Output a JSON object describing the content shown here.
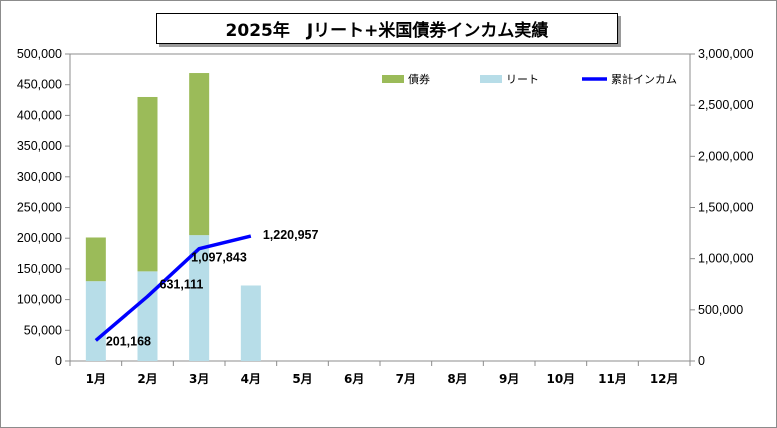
{
  "title": "2025年　Jリート+米国債券インカム実績",
  "colors": {
    "bond": "#9bbb59",
    "reit": "#b7dde8",
    "cumulative": "#0000ff"
  },
  "chart_data": {
    "type": "bar",
    "stacked": true,
    "categories": [
      "1月",
      "2月",
      "3月",
      "4月",
      "5月",
      "6月",
      "7月",
      "8月",
      "9月",
      "10月",
      "11月",
      "12月"
    ],
    "series": [
      {
        "name": "リート",
        "axis": "left",
        "values": [
          130000,
          146000,
          205000,
          123000,
          null,
          null,
          null,
          null,
          null,
          null,
          null,
          null
        ]
      },
      {
        "name": "債券",
        "axis": "left",
        "values": [
          71168,
          284000,
          264000,
          0,
          null,
          null,
          null,
          null,
          null,
          null,
          null,
          null
        ]
      },
      {
        "name": "累計インカム",
        "type": "line",
        "axis": "right",
        "values": [
          201168,
          631111,
          1097843,
          1220957,
          null,
          null,
          null,
          null,
          null,
          null,
          null,
          null
        ]
      }
    ],
    "data_labels": [
      "201,168",
      "631,111",
      "1,097,843",
      "1,220,957"
    ],
    "y_left": {
      "min": 0,
      "max": 500000,
      "ticks": [
        "0",
        "50,000",
        "100,000",
        "150,000",
        "200,000",
        "250,000",
        "300,000",
        "350,000",
        "400,000",
        "450,000",
        "500,000"
      ]
    },
    "y_right": {
      "min": 0,
      "max": 3000000,
      "ticks": [
        "0",
        "500,000",
        "1,000,000",
        "1,500,000",
        "2,000,000",
        "2,500,000",
        "3,000,000"
      ]
    },
    "legend": {
      "position": "top-right",
      "items": [
        "債券",
        "リート",
        "累計インカム"
      ]
    },
    "grid": false
  }
}
